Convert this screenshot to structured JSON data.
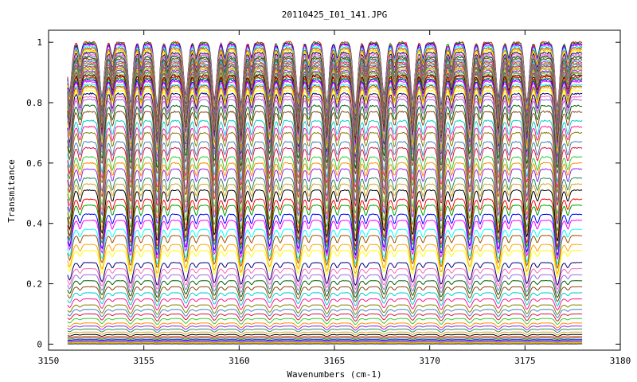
{
  "chart_data": {
    "type": "line",
    "title": "20110425_I01_141.JPG",
    "xlabel": "Wavenumbers (cm-1)",
    "ylabel": "Transmitance",
    "xlim": [
      3150,
      3180
    ],
    "ylim": [
      -0.02,
      1.04
    ],
    "x_range_data": [
      3151,
      3178
    ],
    "xticks": [
      3150,
      3155,
      3160,
      3165,
      3170,
      3175,
      3180
    ],
    "yticks": [
      0,
      0.2,
      0.4,
      0.6,
      0.8,
      1
    ],
    "xtick_labels": [
      "3150",
      "3155",
      "3160",
      "3165",
      "3170",
      "3175",
      "3180"
    ],
    "ytick_labels": [
      "0",
      "0.2",
      "0.4",
      "0.6",
      "0.8",
      "1"
    ],
    "grid": false,
    "legend": "none",
    "absorption_lines_x": [
      3151.1,
      3152.8,
      3154.3,
      3155.7,
      3157.2,
      3158.7,
      3160.1,
      3161.6,
      3163.1,
      3164.6,
      3166.1,
      3167.6,
      3169.1,
      3170.6,
      3172.1,
      3173.6,
      3175.1,
      3176.7
    ],
    "series_baselines": [
      1.0,
      0.997,
      0.994,
      0.99,
      0.985,
      0.98,
      0.975,
      0.97,
      0.965,
      0.96,
      0.955,
      0.95,
      0.945,
      0.94,
      0.935,
      0.93,
      0.925,
      0.92,
      0.915,
      0.91,
      0.905,
      0.9,
      0.895,
      0.89,
      0.885,
      0.88,
      0.875,
      0.87,
      0.86,
      0.855,
      0.85,
      0.84,
      0.83,
      0.82,
      0.81,
      0.79,
      0.77,
      0.74,
      0.72,
      0.7,
      0.67,
      0.65,
      0.62,
      0.6,
      0.58,
      0.55,
      0.53,
      0.51,
      0.48,
      0.46,
      0.43,
      0.41,
      0.38,
      0.36,
      0.33,
      0.31,
      0.27,
      0.25,
      0.23,
      0.21,
      0.19,
      0.17,
      0.15,
      0.13,
      0.115,
      0.1,
      0.085,
      0.07,
      0.06,
      0.05,
      0.04,
      0.032,
      0.025,
      0.02,
      0.015,
      0.012,
      0.009,
      0.007,
      0.005,
      0.003,
      0.001
    ],
    "palette": [
      "#ff0000",
      "#00a000",
      "#0000ff",
      "#ff00ff",
      "#00ffff",
      "#a05000",
      "#ffa500",
      "#ffff00",
      "#000080",
      "#ff69b4",
      "#9370db",
      "#006400",
      "#8b4513",
      "#00ced1",
      "#ff1493",
      "#808000",
      "#4682b4",
      "#dc143c",
      "#32cd32",
      "#ff8c00",
      "#8a2be2",
      "#2e8b57",
      "#daa520",
      "#000000"
    ]
  }
}
